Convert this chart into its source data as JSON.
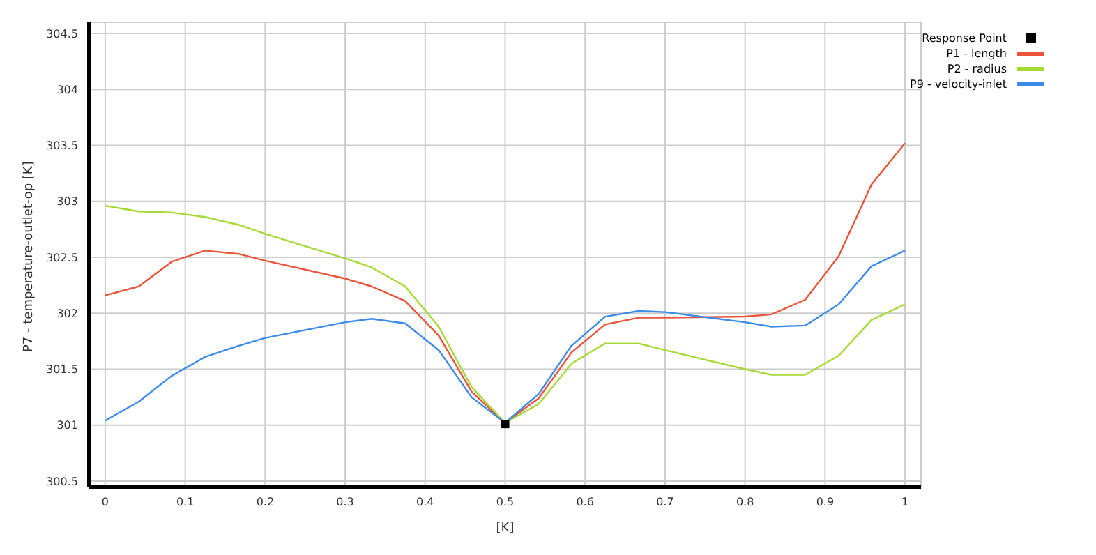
{
  "chart_data": {
    "type": "line",
    "xlabel": "[K]",
    "ylabel": "P7 - temperature-outlet-op  [K]",
    "x": [
      0,
      0.042,
      0.083,
      0.125,
      0.167,
      0.2,
      0.3,
      0.333,
      0.375,
      0.417,
      0.458,
      0.5,
      0.542,
      0.583,
      0.625,
      0.667,
      0.7,
      0.8,
      0.833,
      0.875,
      0.917,
      0.958,
      1
    ],
    "series": [
      {
        "name": "Response Point",
        "type": "scatter",
        "marker": "square",
        "color": "#000000",
        "x": [
          0.5
        ],
        "values": [
          301.01
        ]
      },
      {
        "name": "P1 - length",
        "color": "#e8553a",
        "values": [
          302.16,
          302.24,
          302.46,
          302.56,
          302.53,
          302.47,
          302.31,
          302.24,
          302.11,
          301.8,
          301.3,
          301.02,
          301.24,
          301.65,
          301.9,
          301.96,
          301.96,
          301.97,
          301.99,
          302.12,
          302.51,
          303.15,
          303.52
        ]
      },
      {
        "name": "P2 - radius",
        "color": "#a5d936",
        "values": [
          302.96,
          302.91,
          302.9,
          302.86,
          302.79,
          302.71,
          302.49,
          302.41,
          302.24,
          301.88,
          301.34,
          301.02,
          301.19,
          301.55,
          301.73,
          301.73,
          301.67,
          301.5,
          301.45,
          301.45,
          301.62,
          301.94,
          302.08
        ]
      },
      {
        "name": "P9 - velocity-inlet",
        "color": "#3d8be8",
        "values": [
          301.04,
          301.21,
          301.44,
          301.61,
          301.71,
          301.78,
          301.92,
          301.95,
          301.91,
          301.67,
          301.25,
          301.02,
          301.28,
          301.71,
          301.97,
          302.02,
          302.01,
          301.92,
          301.88,
          301.89,
          302.08,
          302.42,
          302.56
        ]
      }
    ],
    "xlim": [
      -0.02,
      1.02
    ],
    "xticks": [
      0,
      0.1,
      0.2,
      0.3,
      0.4,
      0.5,
      0.6,
      0.7,
      0.8,
      0.9,
      1
    ],
    "ylim": [
      300.45,
      304.6
    ],
    "yticks": [
      300.5,
      301,
      301.5,
      302,
      302.5,
      303,
      303.5,
      304,
      304.5
    ],
    "grid": true,
    "legend": "top right",
    "marker": "none",
    "line_style": "solid"
  }
}
